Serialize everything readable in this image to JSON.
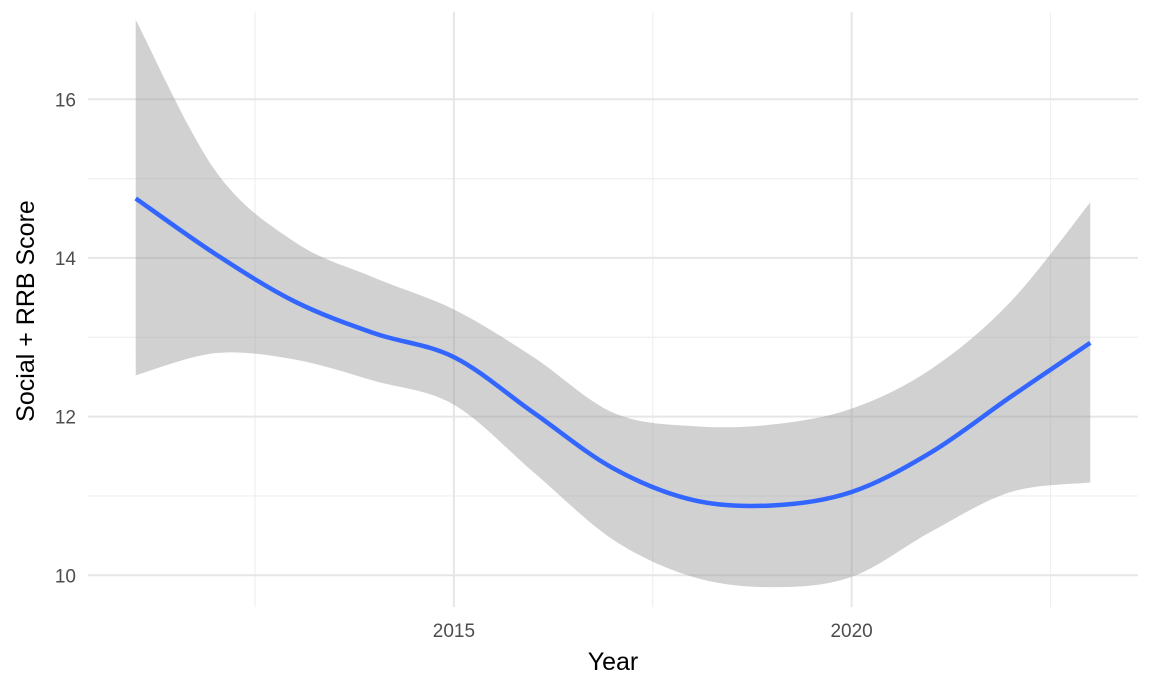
{
  "chart_data": {
    "type": "line",
    "title": "",
    "xlabel": "Year",
    "ylabel": "Social + RRB Score",
    "xlim": [
      2010.4,
      2023.6
    ],
    "ylim": [
      9.6,
      17.1
    ],
    "x_major_ticks": [
      2015,
      2020
    ],
    "x_minor_ticks": [
      2012.5,
      2017.5,
      2022.5
    ],
    "y_major_ticks": [
      10,
      12,
      14,
      16
    ],
    "y_minor_ticks": [
      11,
      13,
      15
    ],
    "x_tick_labels": [
      "2015",
      "2020"
    ],
    "y_tick_labels": [
      "10",
      "12",
      "14",
      "16"
    ],
    "grid": true,
    "legend": "none",
    "series": [
      {
        "kind": "smooth",
        "color": "#3366ff",
        "x": [
          2011,
          2012,
          2013,
          2014,
          2015,
          2016,
          2017,
          2018,
          2019,
          2020,
          2021,
          2022,
          2023
        ],
        "y": [
          14.75,
          14.05,
          13.45,
          13.05,
          12.75,
          12.05,
          11.35,
          10.95,
          10.88,
          11.05,
          11.55,
          12.25,
          12.93
        ],
        "lower": [
          12.52,
          12.8,
          12.72,
          12.45,
          12.15,
          11.3,
          10.45,
          9.98,
          9.85,
          9.98,
          10.55,
          11.05,
          11.17
        ],
        "upper": [
          17.0,
          15.1,
          14.2,
          13.75,
          13.35,
          12.75,
          12.05,
          11.88,
          11.9,
          12.1,
          12.6,
          13.45,
          14.7
        ]
      }
    ],
    "band_color": "#999999",
    "band_opacity": 0.45
  }
}
